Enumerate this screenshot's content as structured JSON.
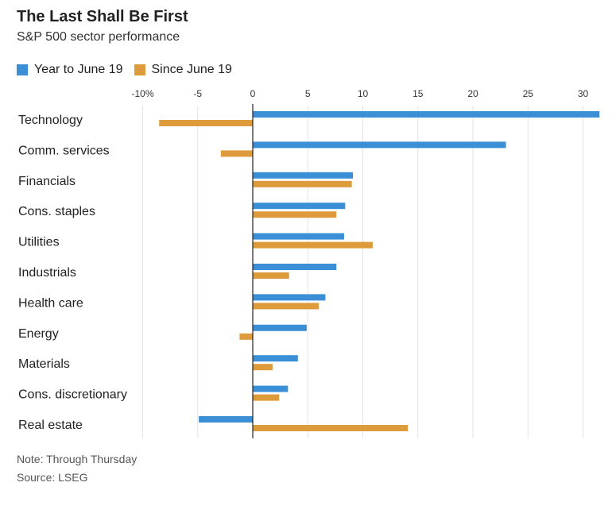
{
  "header": {
    "title": "The Last Shall Be First",
    "subtitle": "S&P 500 sector performance"
  },
  "footer": {
    "note": "Note: Through Thursday",
    "source": "Source: LSEG"
  },
  "chart_data": {
    "type": "bar",
    "orientation": "horizontal",
    "title": "The Last Shall Be First",
    "subtitle": "S&P 500 sector performance",
    "xlim": [
      -10,
      32
    ],
    "ticks": [
      -10,
      -5,
      0,
      5,
      10,
      15,
      20,
      25,
      30
    ],
    "tick_labels": [
      "-10%",
      "-5",
      "0",
      "5",
      "10",
      "15",
      "20",
      "25",
      "30"
    ],
    "grid": true,
    "legend_position": "top-left",
    "categories": [
      "Technology",
      "Comm. services",
      "Financials",
      "Cons. staples",
      "Utilities",
      "Industrials",
      "Health care",
      "Energy",
      "Materials",
      "Cons. discretionary",
      "Real estate"
    ],
    "series": [
      {
        "name": "Year to June 19",
        "color": "#3a8fd6",
        "values": [
          31.5,
          23.0,
          9.1,
          8.4,
          8.3,
          7.6,
          6.6,
          4.9,
          4.1,
          3.2,
          -4.9
        ]
      },
      {
        "name": "Since June 19",
        "color": "#dd9b3c",
        "values": [
          -8.5,
          -2.9,
          9.0,
          7.6,
          10.9,
          3.3,
          6.0,
          -1.2,
          1.8,
          2.4,
          14.1
        ]
      }
    ]
  }
}
